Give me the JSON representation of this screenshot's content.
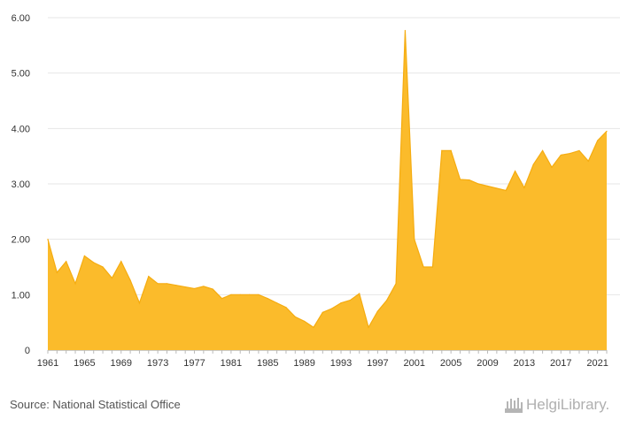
{
  "chart_data": {
    "type": "area",
    "title": "",
    "xlabel": "",
    "ylabel": "",
    "ylim": [
      0,
      6
    ],
    "xlim": [
      1961,
      2022
    ],
    "grid": true,
    "legend": "none",
    "y_ticks": [
      0,
      1,
      2,
      3,
      4,
      5,
      6
    ],
    "y_tick_labels": [
      "0",
      "1.00",
      "2.00",
      "3.00",
      "4.00",
      "5.00",
      "6.00"
    ],
    "x_ticks": [
      1961,
      1965,
      1969,
      1973,
      1977,
      1981,
      1985,
      1989,
      1993,
      1997,
      2001,
      2005,
      2009,
      2013,
      2017,
      2021
    ],
    "x_tick_labels": [
      "1961",
      "1965",
      "1969",
      "1973",
      "1977",
      "1981",
      "1985",
      "1989",
      "1993",
      "1997",
      "2001",
      "2005",
      "2009",
      "2013",
      "2017",
      "2021"
    ],
    "colors": {
      "fill": "#fbbb2b",
      "stroke": "#f5ac10",
      "grid": "#e6e6e6"
    },
    "series": [
      {
        "x": [
          1961,
          1962,
          1963,
          1964,
          1965,
          1966,
          1967,
          1968,
          1969,
          1970,
          1971,
          1972,
          1973,
          1974,
          1975,
          1976,
          1977,
          1978,
          1979,
          1980,
          1981,
          1982,
          1983,
          1984,
          1985,
          1986,
          1987,
          1988,
          1989,
          1990,
          1991,
          1992,
          1993,
          1994,
          1995,
          1996,
          1997,
          1998,
          1999,
          2000,
          2001,
          2002,
          2003,
          2004,
          2005,
          2006,
          2007,
          2008,
          2009,
          2010,
          2011,
          2012,
          2013,
          2014,
          2015,
          2016,
          2017,
          2018,
          2019,
          2020,
          2021,
          2022
        ],
        "values": [
          2.0,
          1.4,
          1.6,
          1.2,
          1.7,
          1.58,
          1.5,
          1.3,
          1.6,
          1.26,
          0.85,
          1.33,
          1.2,
          1.2,
          1.17,
          1.14,
          1.11,
          1.15,
          1.1,
          0.93,
          1.0,
          1.0,
          1.0,
          1.0,
          0.93,
          0.85,
          0.77,
          0.6,
          0.52,
          0.41,
          0.68,
          0.75,
          0.85,
          0.9,
          1.02,
          0.41,
          0.7,
          0.9,
          1.2,
          5.77,
          2.0,
          1.5,
          1.5,
          3.6,
          3.6,
          3.08,
          3.07,
          3.0,
          2.96,
          2.92,
          2.88,
          3.23,
          2.93,
          3.35,
          3.6,
          3.3,
          3.52,
          3.55,
          3.6,
          3.41,
          3.78,
          3.95
        ]
      }
    ]
  },
  "footer": {
    "source_text": "Source: National Statistical Office",
    "logo_text": "HelgiLibrary."
  }
}
